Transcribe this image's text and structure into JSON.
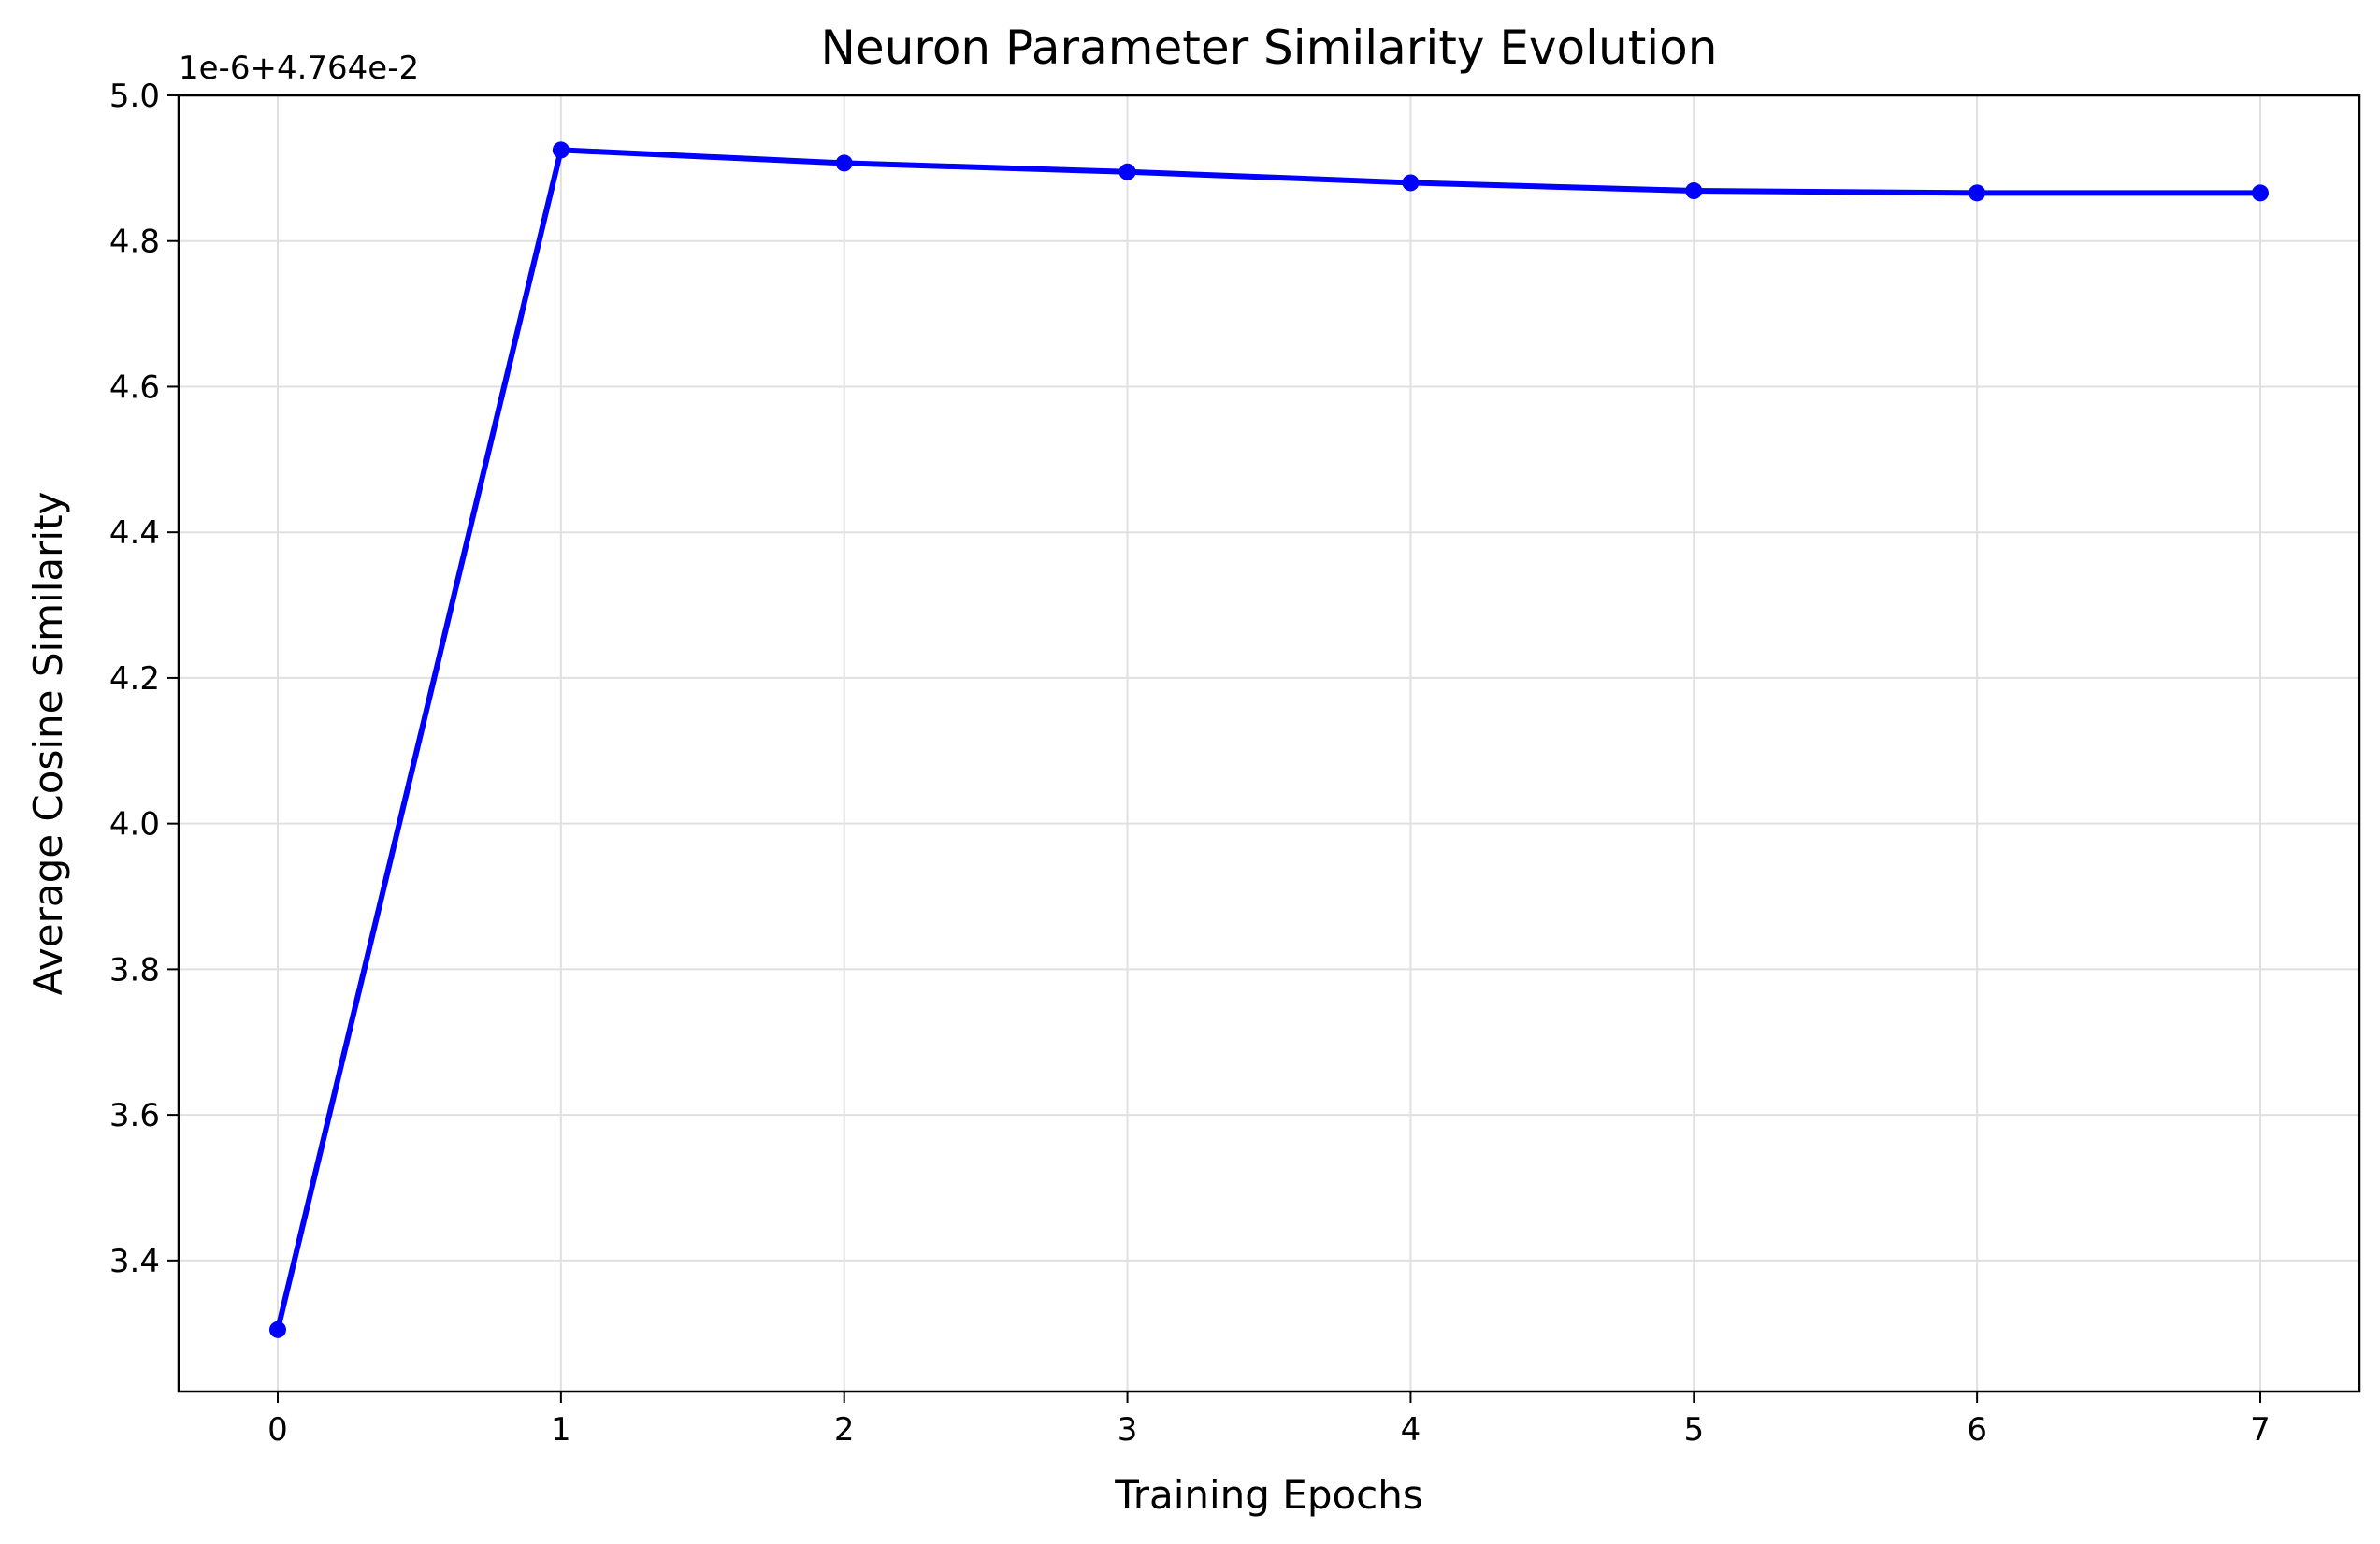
{
  "chart_data": {
    "type": "line",
    "title": "Neuron Parameter Similarity Evolution",
    "xlabel": "Training Epochs",
    "ylabel": "Average Cosine Similarity",
    "offset_label": "1e-6+4.764e-2",
    "x": [
      0,
      1,
      2,
      3,
      4,
      5,
      6,
      7
    ],
    "series": [
      {
        "values": [
          3.305,
          4.925,
          4.907,
          4.895,
          4.88,
          4.869,
          4.866,
          4.866
        ],
        "color": "#0000ff",
        "marker": "circle"
      }
    ],
    "xlim": [
      -0.35,
      7.35
    ],
    "ylim": [
      3.22,
      5.0
    ],
    "xticks": [
      0,
      1,
      2,
      3,
      4,
      5,
      6,
      7
    ],
    "xtick_labels": [
      "0",
      "1",
      "2",
      "3",
      "4",
      "5",
      "6",
      "7"
    ],
    "yticks": [
      3.4,
      3.6,
      3.8,
      4.0,
      4.2,
      4.4,
      4.6,
      4.8,
      5.0
    ],
    "ytick_labels": [
      "3.4",
      "3.6",
      "3.8",
      "4.0",
      "4.2",
      "4.4",
      "4.6",
      "4.8",
      "5.0"
    ],
    "grid": true,
    "legend": "none"
  }
}
